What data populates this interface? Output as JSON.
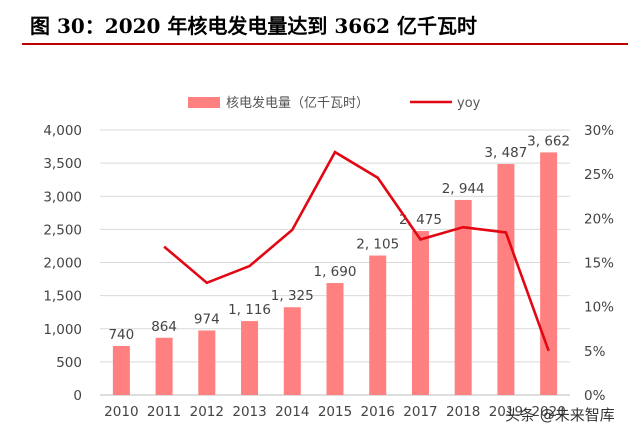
{
  "header": {
    "title": "图 30：2020 年核电发电量达到 3662 亿千瓦时"
  },
  "watermark": {
    "text": "头条 @未来智库"
  },
  "colors": {
    "bar": "#ff8080",
    "line": "#e30613",
    "title_rule": "#c00000"
  },
  "chart_data": {
    "type": "bar",
    "title": "2020 年核电发电量达到 3662 亿千瓦时",
    "categories": [
      "2010",
      "2011",
      "2012",
      "2013",
      "2014",
      "2015",
      "2016",
      "2017",
      "2018",
      "2019",
      "2020"
    ],
    "series": [
      {
        "name": "核电发电量（亿千瓦时）",
        "type": "bar",
        "axis": "left",
        "values": [
          740,
          864,
          974,
          1116,
          1325,
          1690,
          2105,
          2475,
          2944,
          3487,
          3662
        ],
        "labels": [
          "740",
          "864",
          "974",
          "1, 116",
          "1, 325",
          "1, 690",
          "2, 105",
          "2, 475",
          "2, 944",
          "3, 487",
          "3, 662"
        ]
      },
      {
        "name": "yoy",
        "type": "line",
        "axis": "right",
        "values": [
          null,
          16.8,
          12.7,
          14.6,
          18.7,
          27.5,
          24.6,
          17.6,
          19.0,
          18.4,
          5.0
        ]
      }
    ],
    "y_left": {
      "min": 0,
      "max": 4000,
      "step": 500,
      "tick_labels": [
        "0",
        "500",
        "1,000",
        "1,500",
        "2,000",
        "2,500",
        "3,000",
        "3,500",
        "4,000"
      ]
    },
    "y_right": {
      "min": 0,
      "max": 30,
      "step": 5,
      "tick_labels": [
        "0%",
        "5%",
        "10%",
        "15%",
        "20%",
        "25%",
        "30%"
      ]
    },
    "legend_position": "top",
    "grid": true
  }
}
